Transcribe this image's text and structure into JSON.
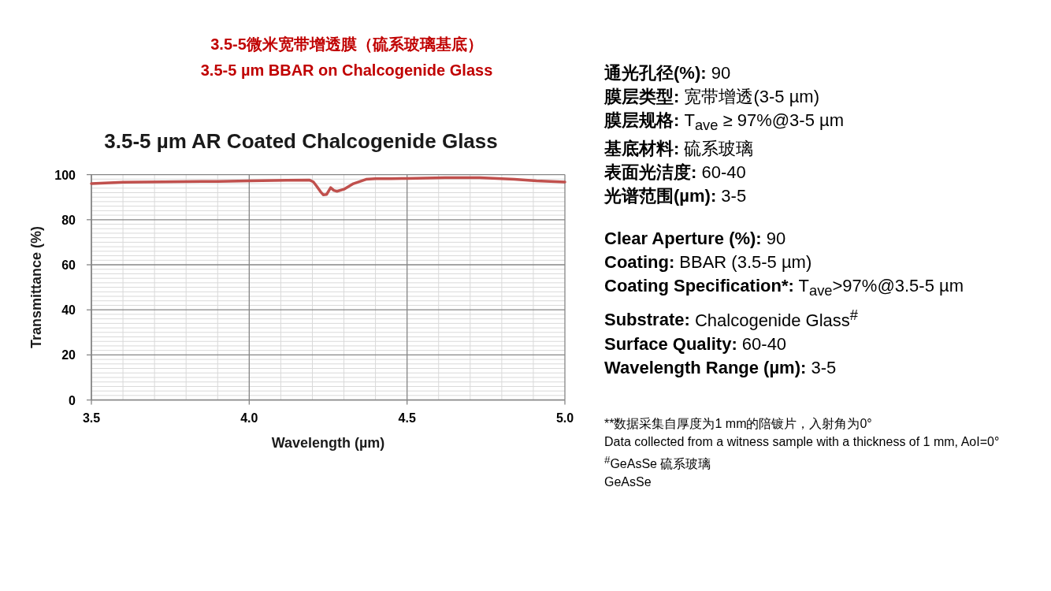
{
  "chart_data": [
    {
      "type": "other",
      "title": "3.5-5微米宽带增透膜（硫系玻璃基底）",
      "subtitle": "3.5-5 µm BBAR on Chalcogenide Glass"
    },
    {
      "type": "line",
      "title": "3.5-5 µm AR Coated Chalcogenide Glass",
      "xlabel": "Wavelength (µm)",
      "ylabel": "Transmittance (%)",
      "x": [
        3.5,
        3.6,
        3.73,
        3.9,
        4.0,
        4.12,
        4.19,
        4.203,
        4.214,
        4.226,
        4.235,
        4.245,
        4.258,
        4.268,
        4.278,
        4.3,
        4.33,
        4.37,
        4.4,
        4.45,
        4.5,
        4.62,
        4.73,
        4.84,
        4.91,
        5.0
      ],
      "values": [
        96.0,
        96.6,
        96.8,
        97.0,
        97.2,
        97.5,
        97.6,
        96.8,
        94.8,
        92.4,
        91.0,
        91.2,
        94.2,
        93.0,
        92.6,
        93.5,
        96.0,
        97.9,
        98.2,
        98.2,
        98.3,
        98.6,
        98.6,
        97.9,
        97.2,
        96.7
      ],
      "color": "#c0504d",
      "xlim": [
        3.5,
        5.0
      ],
      "ylim": [
        0,
        100
      ],
      "xticks": [
        3.5,
        {
          "value": 3.6,
          "label": null
        },
        {
          "value": 3.7,
          "label": null
        },
        {
          "value": 3.8,
          "label": null
        },
        {
          "value": 3.9,
          "label": null
        },
        {
          "value": 4.0,
          "label": "4.0"
        },
        {
          "value": 4.1,
          "label": null
        },
        {
          "value": 4.2,
          "label": null
        },
        {
          "value": 4.3,
          "label": null
        },
        {
          "value": 4.4,
          "label": null
        },
        4.5,
        {
          "value": 4.6,
          "label": null
        },
        {
          "value": 4.7,
          "label": null
        },
        {
          "value": 4.8,
          "label": null
        },
        {
          "value": 4.9,
          "label": null
        },
        {
          "value": 5.0,
          "label": "5.0"
        }
      ],
      "yticks": [
        0,
        {
          "value": 2,
          "label": null
        },
        {
          "value": 4,
          "label": null
        },
        {
          "value": 6,
          "label": null
        },
        {
          "value": 8,
          "label": null
        },
        {
          "value": 10,
          "label": null
        },
        {
          "value": 12,
          "label": null
        },
        {
          "value": 14,
          "label": null
        },
        {
          "value": 16,
          "label": null
        },
        {
          "value": 18,
          "label": null
        },
        20,
        {
          "value": 22,
          "label": null
        },
        {
          "value": 24,
          "label": null
        },
        {
          "value": 26,
          "label": null
        },
        {
          "value": 28,
          "label": null
        },
        {
          "value": 30,
          "label": null
        },
        {
          "value": 32,
          "label": null
        },
        {
          "value": 34,
          "label": null
        },
        {
          "value": 36,
          "label": null
        },
        {
          "value": 38,
          "label": null
        },
        40,
        {
          "value": 42,
          "label": null
        },
        {
          "value": 44,
          "label": null
        },
        {
          "value": 46,
          "label": null
        },
        {
          "value": 48,
          "label": null
        },
        {
          "value": 50,
          "label": null
        },
        {
          "value": 52,
          "label": null
        },
        {
          "value": 54,
          "label": null
        },
        {
          "value": 56,
          "label": null
        },
        {
          "value": 58,
          "label": null
        },
        60,
        {
          "value": 62,
          "label": null
        },
        {
          "value": 64,
          "label": null
        },
        {
          "value": 66,
          "label": null
        },
        {
          "value": 68,
          "label": null
        },
        {
          "value": 70,
          "label": null
        },
        {
          "value": 72,
          "label": null
        },
        {
          "value": 74,
          "label": null
        },
        {
          "value": 76,
          "label": null
        },
        {
          "value": 78,
          "label": null
        },
        80,
        {
          "value": 82,
          "label": null
        },
        {
          "value": 84,
          "label": null
        },
        {
          "value": 86,
          "label": null
        },
        {
          "value": 88,
          "label": null
        },
        {
          "value": 90,
          "label": null
        },
        {
          "value": 92,
          "label": null
        },
        {
          "value": 94,
          "label": null
        },
        {
          "value": 96,
          "label": null
        },
        {
          "value": 98,
          "label": null
        },
        100
      ],
      "grid": true
    },
    {
      "type": "other",
      "annotations": [
        "通光孔径(%): 90",
        "膜层类型: 宽带增透(3-5 µm)",
        "膜层规格: T$_{ave}$ ≥ 97%@3-5 µm",
        "基底材料: 硫系玻璃",
        "表面光洁度: 60-40",
        "光谱范围(µm): 3-5"
      ]
    },
    {
      "type": "other",
      "annotations": [
        "Clear Aperture (%): 90",
        "Coating: BBAR (3.5-5 µm)",
        "Coating Specification*: T$_{ave}$>97%@3.5-5 µm",
        "Substrate: Chalcogenide Glass$^{#}$",
        "Surface Quality: 60-40",
        "Wavelength Range (µm): 3-5"
      ]
    },
    {
      "type": "other",
      "annotations": [
        "**数据采集自厚度为1 mm的陪镀片，入射角为0°",
        "Data collected from a witness sample with a thickness of 1 mm, AoI=0°",
        "$^{#}$GeAsSe 硫系玻璃",
        "GeAsSe"
      ]
    }
  ]
}
